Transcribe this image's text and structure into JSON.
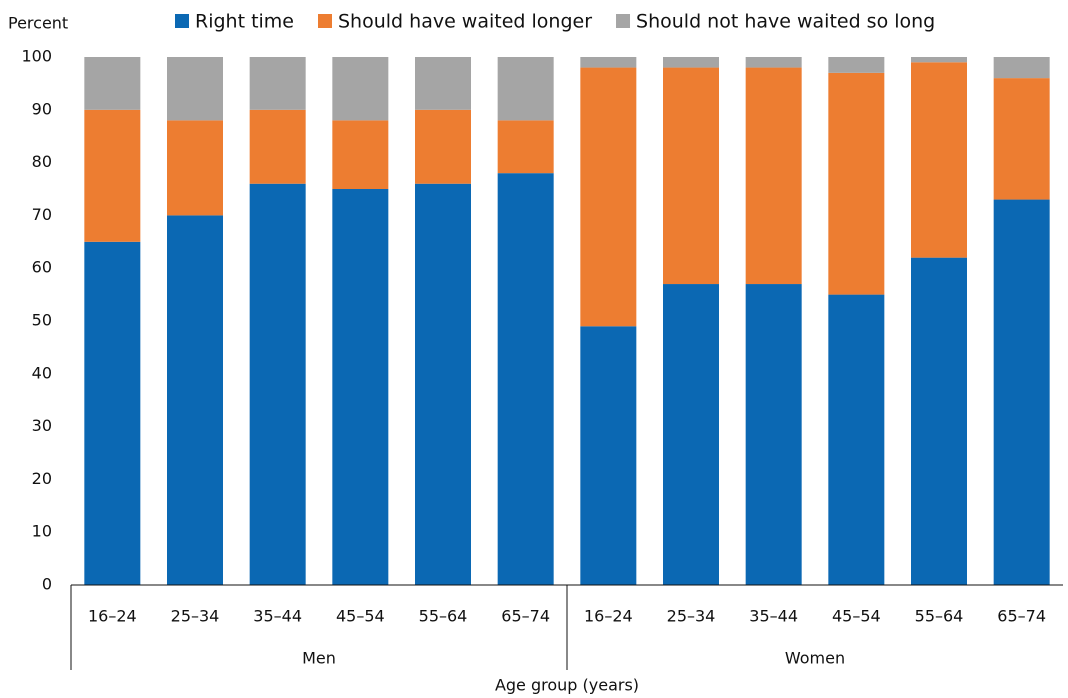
{
  "chart_data": {
    "type": "stacked_bar",
    "y_label": "Percent",
    "x_label": "Age group (years)",
    "categories": [
      "16–24",
      "25–34",
      "35–44",
      "45–54",
      "55–64",
      "65–74",
      "16–24",
      "25–34",
      "35–44",
      "45–54",
      "55–64",
      "65–74"
    ],
    "groups": [
      "Men",
      "Women"
    ],
    "series": [
      {
        "name": "Right time",
        "color": "#0b68b3",
        "values": [
          65,
          70,
          76,
          75,
          76,
          78,
          49,
          57,
          57,
          55,
          62,
          73
        ]
      },
      {
        "name": "Should have waited longer",
        "color": "#ed7d31",
        "values": [
          25,
          18,
          14,
          13,
          14,
          10,
          49,
          41,
          41,
          42,
          37,
          23
        ]
      },
      {
        "name": "Should not have waited so long",
        "color": "#a5a5a5",
        "values": [
          10,
          12,
          10,
          12,
          10,
          12,
          2,
          2,
          2,
          3,
          1,
          4
        ]
      }
    ],
    "ylim": [
      0,
      100
    ],
    "yticks": [
      0,
      10,
      20,
      30,
      40,
      50,
      60,
      70,
      80,
      90,
      100
    ],
    "grid": false
  }
}
